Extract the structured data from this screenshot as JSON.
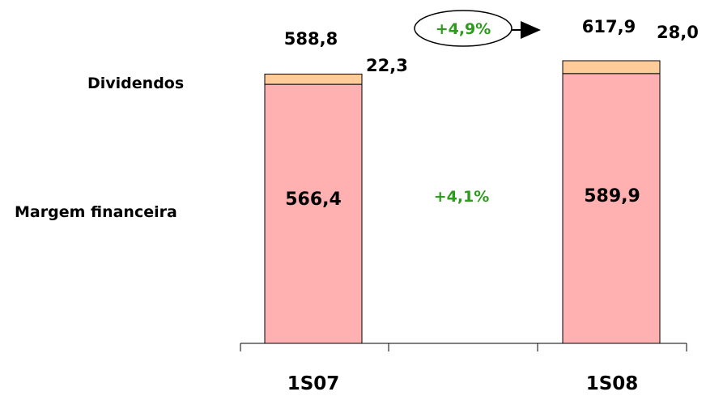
{
  "chart_data": {
    "type": "bar",
    "stacked": true,
    "categories": [
      "1S07",
      "1S08"
    ],
    "series": [
      {
        "name": "Margem financeira",
        "values": [
          566.4,
          589.9
        ],
        "labels": [
          "566,4",
          "589,9"
        ],
        "color": "#FFB0B0"
      },
      {
        "name": "Dividendos",
        "values": [
          22.3,
          28.0
        ],
        "labels": [
          "22,3",
          "28,0"
        ],
        "color": "#FFCC99"
      }
    ],
    "totals": [
      588.8,
      617.9
    ],
    "total_labels": [
      "588,8",
      "617,9"
    ],
    "growth_margin": "+4,1%",
    "growth_total": "+4,9%",
    "bar_outline_color": "#000000",
    "annotation_color": "#2E9B1F"
  }
}
